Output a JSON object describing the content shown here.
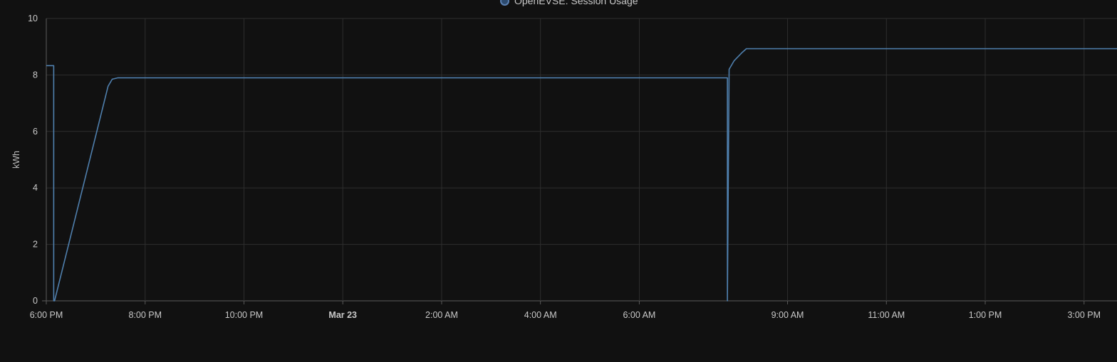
{
  "legend": {
    "label": "OpenEVSE: Session Usage",
    "color": "#4f7fad"
  },
  "colors": {
    "background": "#111111",
    "grid": "#2e2e2e",
    "axis": "#5a5a5a",
    "line": "#4f7fad",
    "text": "#c9c9c9"
  },
  "chart_data": {
    "type": "line",
    "title": "",
    "xlabel": "",
    "ylabel": "kWh",
    "ylim": [
      0,
      10
    ],
    "yticks": [
      0,
      2,
      4,
      6,
      8,
      10
    ],
    "xlim": [
      "2024-03-22 18:00",
      "2024-03-23 15:40"
    ],
    "xticks": [
      {
        "t": "2024-03-22 18:00",
        "label": "6:00 PM",
        "bold": false
      },
      {
        "t": "2024-03-22 20:00",
        "label": "8:00 PM",
        "bold": false
      },
      {
        "t": "2024-03-22 22:00",
        "label": "10:00 PM",
        "bold": false
      },
      {
        "t": "2024-03-23 00:00",
        "label": "Mar 23",
        "bold": true
      },
      {
        "t": "2024-03-23 02:00",
        "label": "2:00 AM",
        "bold": false
      },
      {
        "t": "2024-03-23 04:00",
        "label": "4:00 AM",
        "bold": false
      },
      {
        "t": "2024-03-23 06:00",
        "label": "6:00 AM",
        "bold": false
      },
      {
        "t": "2024-03-23 09:00",
        "label": "9:00 AM",
        "bold": false
      },
      {
        "t": "2024-03-23 11:00",
        "label": "11:00 AM",
        "bold": false
      },
      {
        "t": "2024-03-23 13:00",
        "label": "1:00 PM",
        "bold": false
      },
      {
        "t": "2024-03-23 15:00",
        "label": "3:00 PM",
        "bold": false
      }
    ],
    "grid": true,
    "legend_position": "top-center",
    "series": [
      {
        "name": "OpenEVSE: Session Usage",
        "x": [
          "2024-03-22 18:00",
          "2024-03-22 18:09",
          "2024-03-22 18:09",
          "2024-03-22 18:10",
          "2024-03-22 19:15",
          "2024-03-22 19:20",
          "2024-03-22 19:27",
          "2024-03-23 07:47",
          "2024-03-23 07:47",
          "2024-03-23 07:49",
          "2024-03-23 07:55",
          "2024-03-23 08:05",
          "2024-03-23 08:10",
          "2024-03-23 15:40"
        ],
        "y": [
          8.33,
          8.33,
          0,
          0,
          7.6,
          7.85,
          7.9,
          7.9,
          0,
          8.2,
          8.5,
          8.8,
          8.93,
          8.93
        ]
      }
    ]
  }
}
